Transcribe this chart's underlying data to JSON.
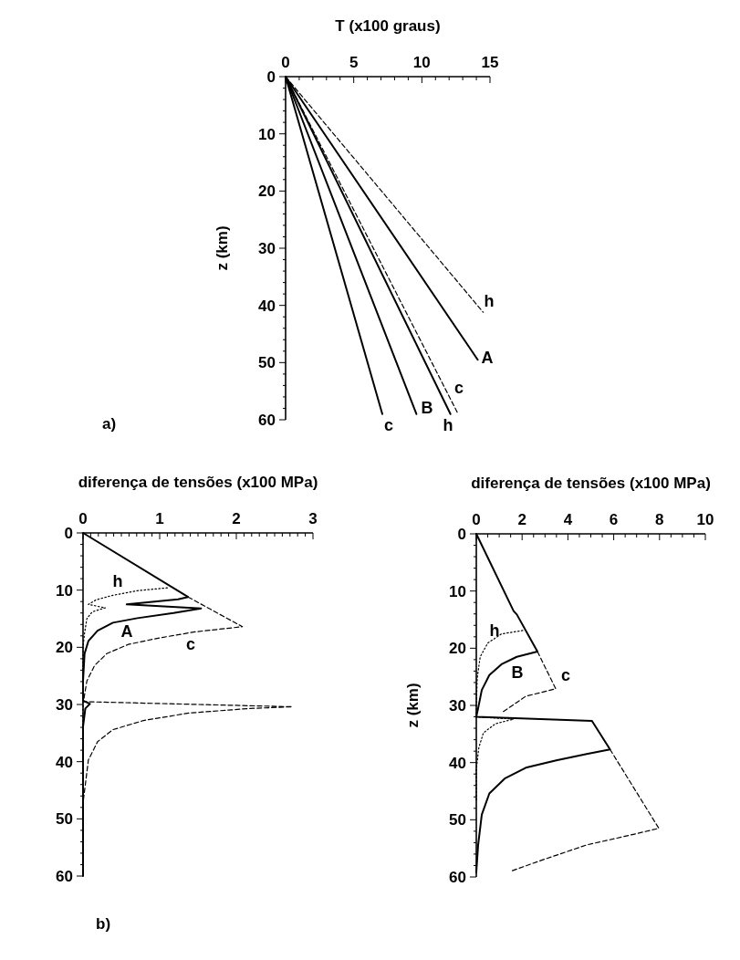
{
  "chart_data": [
    {
      "type": "line",
      "xlabel": "T (x100 graus)",
      "ylabel": "z (km)",
      "xlim": [
        0,
        15
      ],
      "ylim": [
        60,
        0
      ],
      "xticks": [
        0,
        {
          "value": 1,
          "label": null
        },
        {
          "value": 2,
          "label": null
        },
        {
          "value": 3,
          "label": null
        },
        {
          "value": 4,
          "label": null
        },
        5,
        {
          "value": 6,
          "label": null
        },
        {
          "value": 7,
          "label": null
        },
        {
          "value": 8,
          "label": null
        },
        {
          "value": 9,
          "label": null
        },
        10,
        {
          "value": 11,
          "label": null
        },
        {
          "value": 12,
          "label": null
        },
        {
          "value": 13,
          "label": null
        },
        {
          "value": 14,
          "label": null
        },
        15
      ],
      "yticks": [
        0,
        {
          "value": 2,
          "label": null
        },
        {
          "value": 4,
          "label": null
        },
        {
          "value": 6,
          "label": null
        },
        {
          "value": 8,
          "label": null
        },
        10,
        {
          "value": 12,
          "label": null
        },
        {
          "value": 14,
          "label": null
        },
        {
          "value": 16,
          "label": null
        },
        {
          "value": 18,
          "label": null
        },
        20,
        {
          "value": 22,
          "label": null
        },
        {
          "value": 24,
          "label": null
        },
        {
          "value": 26,
          "label": null
        },
        {
          "value": 28,
          "label": null
        },
        30,
        {
          "value": 32,
          "label": null
        },
        {
          "value": 34,
          "label": null
        },
        {
          "value": 36,
          "label": null
        },
        {
          "value": 38,
          "label": null
        },
        40,
        {
          "value": 42,
          "label": null
        },
        {
          "value": 44,
          "label": null
        },
        {
          "value": 46,
          "label": null
        },
        {
          "value": 48,
          "label": null
        },
        50,
        {
          "value": 52,
          "label": null
        },
        {
          "value": 54,
          "label": null
        },
        {
          "value": 56,
          "label": null
        },
        {
          "value": 58,
          "label": null
        },
        60
      ],
      "grid": false,
      "marker": "none",
      "series": [
        {
          "name": "c",
          "color": "#000000",
          "line_style": "solid",
          "x": [
            0,
            7.1
          ],
          "values": [
            0,
            59
          ]
        },
        {
          "name": "B",
          "color": "#000000",
          "line_style": "solid",
          "x": [
            0,
            9.6
          ],
          "values": [
            0,
            59
          ]
        },
        {
          "name": "h",
          "color": "#000000",
          "line_style": "solid",
          "x": [
            0,
            12.1
          ],
          "values": [
            0,
            59
          ]
        },
        {
          "name": "c",
          "color": "#000000",
          "line_style": "dashed",
          "x": [
            0,
            12.6
          ],
          "values": [
            0,
            58.7
          ]
        },
        {
          "name": "A",
          "color": "#000000",
          "line_style": "solid",
          "x": [
            0,
            14.1
          ],
          "values": [
            0,
            49.5
          ]
        },
        {
          "name": "h",
          "color": "#000000",
          "line_style": "dashed",
          "x": [
            0,
            14.5
          ],
          "values": [
            0,
            41.2
          ]
        }
      ],
      "annotations": [
        "a)"
      ]
    },
    {
      "type": "line",
      "xlabel": "diferença de tensões (x100 MPa)",
      "xlim": [
        0,
        3
      ],
      "ylim": [
        60,
        0
      ],
      "xticks": [
        0,
        {
          "value": 0.1,
          "label": null
        },
        {
          "value": 0.2,
          "label": null
        },
        {
          "value": 0.3,
          "label": null
        },
        {
          "value": 0.4,
          "label": null
        },
        {
          "value": 0.5,
          "label": null
        },
        {
          "value": 0.6,
          "label": null
        },
        {
          "value": 0.7,
          "label": null
        },
        {
          "value": 0.8,
          "label": null
        },
        {
          "value": 0.9,
          "label": null
        },
        1,
        {
          "value": 1.1,
          "label": null
        },
        {
          "value": 1.2,
          "label": null
        },
        {
          "value": 1.3,
          "label": null
        },
        {
          "value": 1.4,
          "label": null
        },
        {
          "value": 1.5,
          "label": null
        },
        {
          "value": 1.6,
          "label": null
        },
        {
          "value": 1.7,
          "label": null
        },
        {
          "value": 1.8,
          "label": null
        },
        {
          "value": 1.9,
          "label": null
        },
        2,
        {
          "value": 2.1,
          "label": null
        },
        {
          "value": 2.2,
          "label": null
        },
        {
          "value": 2.3,
          "label": null
        },
        {
          "value": 2.4,
          "label": null
        },
        {
          "value": 2.5,
          "label": null
        },
        {
          "value": 2.6,
          "label": null
        },
        {
          "value": 2.7,
          "label": null
        },
        {
          "value": 2.8,
          "label": null
        },
        {
          "value": 2.9,
          "label": null
        },
        3
      ],
      "yticks": [
        0,
        {
          "value": 2,
          "label": null
        },
        {
          "value": 4,
          "label": null
        },
        {
          "value": 6,
          "label": null
        },
        {
          "value": 8,
          "label": null
        },
        10,
        {
          "value": 12,
          "label": null
        },
        {
          "value": 14,
          "label": null
        },
        {
          "value": 16,
          "label": null
        },
        {
          "value": 18,
          "label": null
        },
        20,
        {
          "value": 22,
          "label": null
        },
        {
          "value": 24,
          "label": null
        },
        {
          "value": 26,
          "label": null
        },
        {
          "value": 28,
          "label": null
        },
        30,
        {
          "value": 32,
          "label": null
        },
        {
          "value": 34,
          "label": null
        },
        {
          "value": 36,
          "label": null
        },
        {
          "value": 38,
          "label": null
        },
        40,
        {
          "value": 42,
          "label": null
        },
        {
          "value": 44,
          "label": null
        },
        {
          "value": 46,
          "label": null
        },
        {
          "value": 48,
          "label": null
        },
        50,
        {
          "value": 52,
          "label": null
        },
        {
          "value": 54,
          "label": null
        },
        {
          "value": 56,
          "label": null
        },
        {
          "value": 58,
          "label": null
        },
        60
      ],
      "grid": false,
      "marker": "none",
      "series": [
        {
          "name": "A",
          "color": "#000000",
          "line_style": "solid",
          "x": [
            0,
            1.37,
            1.24,
            0.57,
            1.54,
            1.18,
            0.71,
            0.39,
            0.19,
            0.07,
            0.02,
            0,
            0,
            0.09,
            0.03,
            0,
            0
          ],
          "values": [
            0,
            11.2,
            11.6,
            12.5,
            13.2,
            14,
            14.9,
            15.7,
            17.1,
            18.9,
            21.1,
            25.9,
            29.3,
            29.9,
            30.7,
            33.9,
            60
          ]
        },
        {
          "name": "h",
          "color": "#000000",
          "line_style": "dotted",
          "x": [
            1.1,
            0.71,
            0.39,
            0.17,
            0.07,
            0.29,
            0.12,
            0.05,
            0.02,
            0,
            0
          ],
          "values": [
            9.6,
            10.1,
            10.9,
            11.7,
            12.5,
            13.1,
            13.8,
            15,
            17.5,
            20,
            47
          ]
        },
        {
          "name": "c",
          "color": "#000000",
          "line_style": "dashed",
          "x": [
            1.37,
            2.08,
            1.46,
            0.98,
            0.59,
            0.31,
            0.15,
            0.05,
            0.01,
            0,
            2.73,
            2.17,
            1.38,
            0.79,
            0.39,
            0.19,
            0.07,
            0.03,
            0
          ],
          "values": [
            11.2,
            16.4,
            17.3,
            18.4,
            19.5,
            21.1,
            23.2,
            25.9,
            29.1,
            29.5,
            30.4,
            30.7,
            31.5,
            32.8,
            34.4,
            36.5,
            39.7,
            44,
            47.2
          ]
        }
      ],
      "annotations": [
        "b)"
      ]
    },
    {
      "type": "line",
      "xlabel": "diferença de tensões (x100 MPa)",
      "ylabel": "z (km)",
      "xlim": [
        0,
        10
      ],
      "ylim": [
        60,
        0
      ],
      "xticks": [
        0,
        {
          "value": 0.5,
          "label": null
        },
        {
          "value": 1,
          "label": null
        },
        {
          "value": 1.5,
          "label": null
        },
        2,
        {
          "value": 2.5,
          "label": null
        },
        {
          "value": 3,
          "label": null
        },
        {
          "value": 3.5,
          "label": null
        },
        4,
        {
          "value": 4.5,
          "label": null
        },
        {
          "value": 5,
          "label": null
        },
        {
          "value": 5.5,
          "label": null
        },
        6,
        {
          "value": 6.5,
          "label": null
        },
        {
          "value": 7,
          "label": null
        },
        {
          "value": 7.5,
          "label": null
        },
        8,
        {
          "value": 8.5,
          "label": null
        },
        {
          "value": 9,
          "label": null
        },
        {
          "value": 9.5,
          "label": null
        },
        10
      ],
      "yticks": [
        0,
        {
          "value": 2,
          "label": null
        },
        {
          "value": 4,
          "label": null
        },
        {
          "value": 6,
          "label": null
        },
        {
          "value": 8,
          "label": null
        },
        10,
        {
          "value": 12,
          "label": null
        },
        {
          "value": 14,
          "label": null
        },
        {
          "value": 16,
          "label": null
        },
        {
          "value": 18,
          "label": null
        },
        20,
        {
          "value": 22,
          "label": null
        },
        {
          "value": 24,
          "label": null
        },
        {
          "value": 26,
          "label": null
        },
        {
          "value": 28,
          "label": null
        },
        30,
        {
          "value": 32,
          "label": null
        },
        {
          "value": 34,
          "label": null
        },
        {
          "value": 36,
          "label": null
        },
        {
          "value": 38,
          "label": null
        },
        40,
        {
          "value": 42,
          "label": null
        },
        {
          "value": 44,
          "label": null
        },
        {
          "value": 46,
          "label": null
        },
        {
          "value": 48,
          "label": null
        },
        50,
        {
          "value": 52,
          "label": null
        },
        {
          "value": 54,
          "label": null
        },
        {
          "value": 56,
          "label": null
        },
        {
          "value": 58,
          "label": null
        },
        60
      ],
      "grid": false,
      "marker": "none",
      "series": [
        {
          "name": "B",
          "color": "#000000",
          "line_style": "solid",
          "x": [
            0,
            1.63,
            1.77,
            2.67,
            1.77,
            1.1,
            0.57,
            0.24,
            0.08,
            0,
            5.05,
            5.84,
            4.82,
            3.49,
            2.16,
            1.24,
            0.57,
            0.24,
            0.08,
            0
          ],
          "values": [
            0,
            13.5,
            14.1,
            20.6,
            21.5,
            22.8,
            24.7,
            27.3,
            30.5,
            32,
            32.7,
            37.7,
            38.5,
            39.6,
            40.9,
            42.8,
            45.4,
            49.1,
            54.4,
            59.2
          ]
        },
        {
          "name": "h",
          "color": "#000000",
          "line_style": "dotted",
          "x": [
            2.03,
            1.1,
            0.5,
            0.17,
            0.04,
            0,
            0,
            1.63,
            0.84,
            0.31,
            0.11,
            0,
            0
          ],
          "values": [
            16.9,
            17.5,
            19.1,
            21.5,
            25.2,
            30.5,
            32,
            32.4,
            33.2,
            34.8,
            37.4,
            41.2,
            46.5
          ]
        },
        {
          "name": "c",
          "color": "#000000",
          "line_style": "dashed",
          "x": [
            2.67,
            3.47,
            2.16,
            1.1,
            null,
            5.84,
            7.97,
            6.81,
            4.82,
            2.83,
            1.57
          ],
          "values": [
            20.6,
            27.1,
            28.4,
            31.3,
            null,
            37.7,
            51.5,
            52.6,
            54.4,
            57.1,
            58.9
          ]
        }
      ]
    }
  ]
}
